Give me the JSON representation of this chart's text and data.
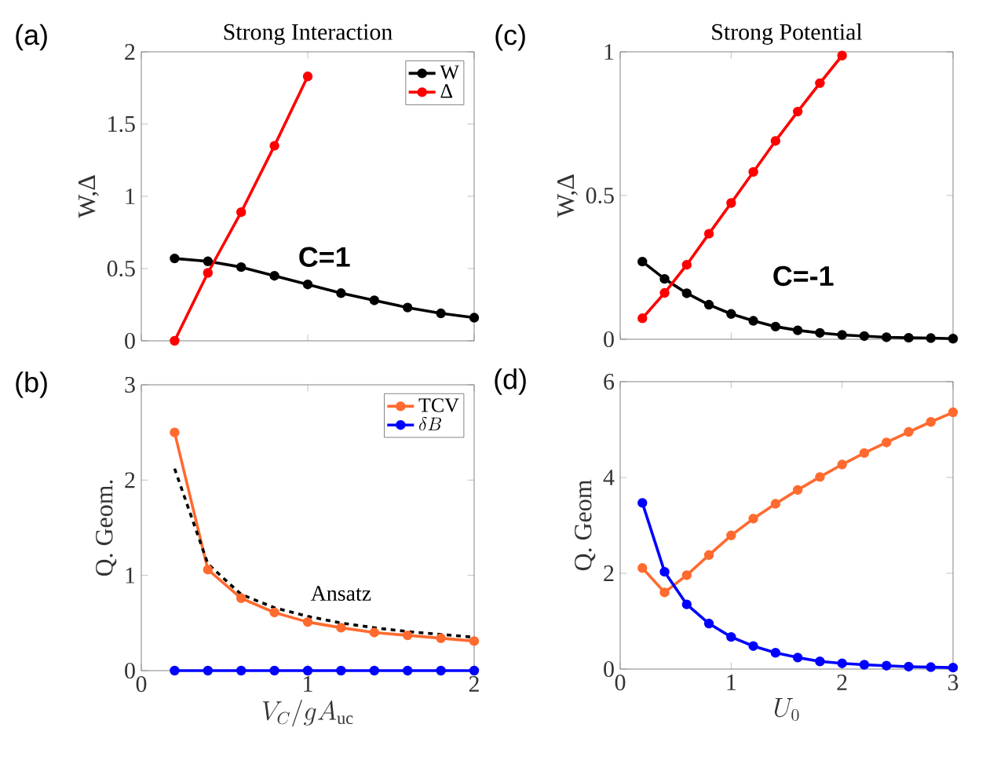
{
  "chart_data": [
    {
      "type": "line",
      "title": "Strong Interaction",
      "ylabel": "W,Δ",
      "xlim": [
        0,
        2
      ],
      "xticks": [
        {
          "value": 0,
          "label": null
        },
        {
          "value": 1,
          "label": null
        },
        {
          "value": 2,
          "label": null
        }
      ],
      "ylim": [
        0,
        2
      ],
      "yticks": [
        0,
        0.5,
        1,
        1.5,
        2
      ],
      "tick_labels": "y",
      "marker": "circle",
      "legend": "top right",
      "annotations": [
        "(a)",
        "C=1"
      ],
      "series": [
        {
          "name": "W",
          "color": "#000000",
          "x": [
            0.2,
            0.4,
            0.6,
            0.8,
            1.0,
            1.2,
            1.4,
            1.6,
            1.8,
            2.0
          ],
          "values": [
            0.57,
            0.55,
            0.51,
            0.45,
            0.39,
            0.33,
            0.28,
            0.23,
            0.19,
            0.16
          ]
        },
        {
          "name": "Δ",
          "color": "#ff0000",
          "x": [
            0.2,
            0.4,
            0.6,
            0.8,
            1.0
          ],
          "values": [
            0,
            0.47,
            0.89,
            1.35,
            1.83
          ]
        }
      ]
    },
    {
      "type": "line",
      "xlabel": "V_C/gA_{\\mathrm{uc}}",
      "ylabel": "Q. Geom.",
      "xlim": [
        0,
        2
      ],
      "xticks": [
        0,
        1,
        2
      ],
      "ylim": [
        0,
        3
      ],
      "yticks": [
        0,
        1,
        2,
        3
      ],
      "marker": "circle",
      "legend": "top right",
      "annotations": [
        "(b)",
        "Ansatz"
      ],
      "series": [
        {
          "name": "TCV",
          "color": "#ff6a2f",
          "x": [
            0.2,
            0.4,
            0.6,
            0.8,
            1.0,
            1.2,
            1.4,
            1.6,
            1.8,
            2.0
          ],
          "values": [
            2.5,
            1.06,
            0.76,
            0.61,
            0.51,
            0.45,
            0.4,
            0.37,
            0.34,
            0.31
          ]
        },
        {
          "name": "\\delta B",
          "color": "#0000ff",
          "x": [
            0.2,
            0.4,
            0.6,
            0.8,
            1.0,
            1.2,
            1.4,
            1.6,
            1.8,
            2.0
          ],
          "values": [
            0,
            0,
            0,
            0,
            0,
            0,
            0,
            0,
            0,
            0
          ]
        },
        {
          "color": "#000000",
          "marker": "none",
          "line_style": "dashed",
          "x": [
            0.2,
            0.4,
            0.6,
            0.8,
            1.0,
            1.2,
            1.4,
            1.6,
            1.8,
            2.0
          ],
          "values": [
            2.12,
            1.12,
            0.8,
            0.66,
            0.57,
            0.5,
            0.45,
            0.41,
            0.38,
            0.35
          ]
        }
      ]
    },
    {
      "type": "line",
      "title": "Strong Potential",
      "ylabel": "W,Δ",
      "xlim": [
        0,
        3
      ],
      "xticks": [
        {
          "value": 0,
          "label": null
        },
        {
          "value": 1,
          "label": null
        },
        {
          "value": 2,
          "label": null
        },
        {
          "value": 3,
          "label": null
        }
      ],
      "ylim": [
        0,
        1
      ],
      "yticks": [
        0,
        0.5,
        1
      ],
      "tick_labels": "y",
      "marker": "circle",
      "annotations": [
        "(c)",
        "C=-1"
      ],
      "series": [
        {
          "color": "#000000",
          "x": [
            0.2,
            0.4,
            0.6,
            0.8,
            1.0,
            1.2,
            1.4,
            1.6,
            1.8,
            2.0,
            2.2,
            2.4,
            2.6,
            2.8,
            3.0
          ],
          "values": [
            0.27,
            0.21,
            0.16,
            0.12,
            0.088,
            0.064,
            0.044,
            0.031,
            0.022,
            0.015,
            0.011,
            0.007,
            0.005,
            0.004,
            0.002
          ]
        },
        {
          "color": "#ff0000",
          "x": [
            0.2,
            0.4,
            0.6,
            0.8,
            1.0,
            1.2,
            1.4,
            1.6,
            1.8,
            2.0
          ],
          "values": [
            0.073,
            0.161,
            0.259,
            0.367,
            0.474,
            0.582,
            0.69,
            0.792,
            0.891,
            0.987
          ]
        }
      ]
    },
    {
      "type": "line",
      "xlabel": "U_0",
      "ylabel": "Q. Geom",
      "xlim": [
        0,
        3
      ],
      "xticks": [
        0,
        1,
        2,
        3
      ],
      "ylim": [
        0,
        6
      ],
      "yticks": [
        0,
        2,
        4,
        6
      ],
      "marker": "circle",
      "annotations": [
        "(d)"
      ],
      "series": [
        {
          "color": "#ff6a2f",
          "x": [
            0.2,
            0.4,
            0.6,
            0.8,
            1.0,
            1.2,
            1.4,
            1.6,
            1.8,
            2.0,
            2.2,
            2.4,
            2.6,
            2.8,
            3.0
          ],
          "values": [
            2.11,
            1.6,
            1.96,
            2.38,
            2.79,
            3.14,
            3.45,
            3.74,
            4.01,
            4.27,
            4.51,
            4.73,
            4.95,
            5.16,
            5.36
          ]
        },
        {
          "color": "#0000ff",
          "x": [
            0.2,
            0.4,
            0.6,
            0.8,
            1.0,
            1.2,
            1.4,
            1.6,
            1.8,
            2.0,
            2.2,
            2.4,
            2.6,
            2.8,
            3.0
          ],
          "values": [
            3.47,
            2.03,
            1.35,
            0.95,
            0.67,
            0.48,
            0.34,
            0.24,
            0.16,
            0.12,
            0.09,
            0.07,
            0.05,
            0.04,
            0.03
          ]
        }
      ]
    }
  ]
}
